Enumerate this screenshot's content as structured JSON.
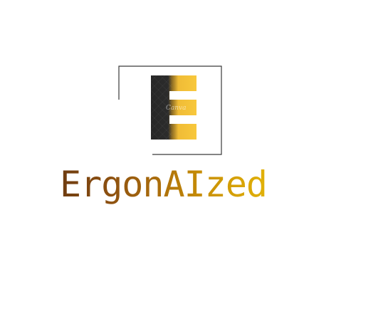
{
  "brand": {
    "name": "ErgonAIzed",
    "mark_letter": "E",
    "watermark": "Canva"
  },
  "colors": {
    "mark_dark": "#2a2a2a",
    "mark_gold": "#f5c33a",
    "frame_line": "#3a3a3a",
    "text_start": "#6e3c10",
    "text_end": "#e2b208"
  }
}
